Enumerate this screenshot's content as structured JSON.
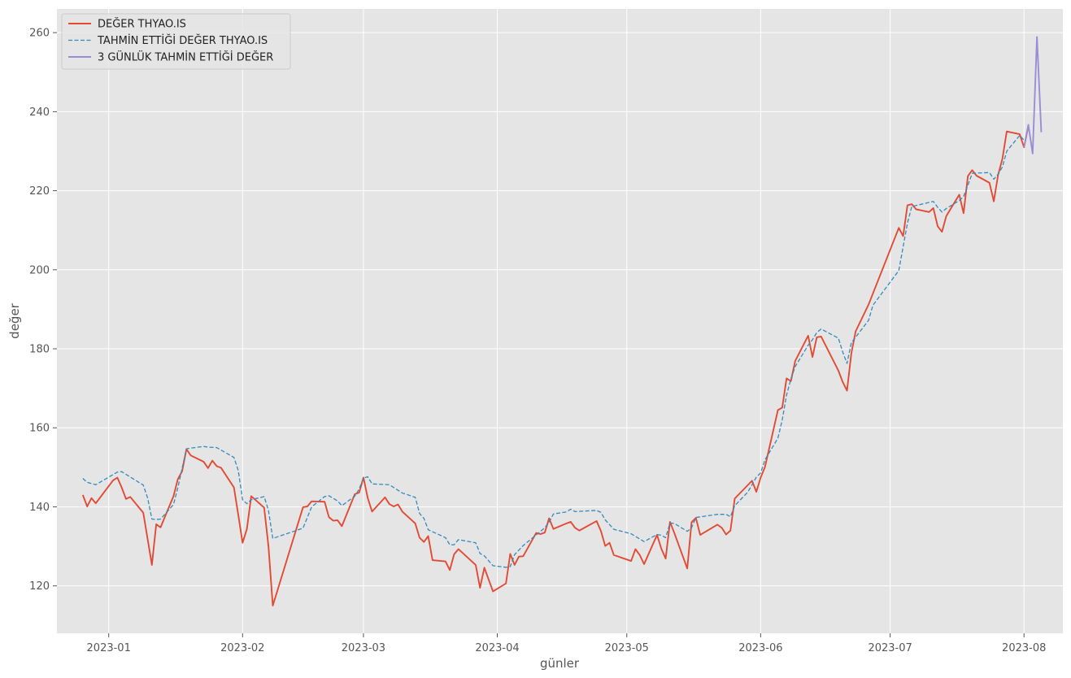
{
  "chart_data": {
    "type": "line",
    "title": "",
    "xlabel": "günler",
    "ylabel": "değer",
    "xlim": [
      "2022-12-20",
      "2023-08-10"
    ],
    "ylim": [
      108,
      266
    ],
    "grid": true,
    "legend_position": "top-left",
    "x_ticks": [
      "2023-01",
      "2023-02",
      "2023-03",
      "2023-04",
      "2023-05",
      "2023-06",
      "2023-07",
      "2023-08"
    ],
    "y_ticks": [
      120,
      140,
      160,
      180,
      200,
      220,
      240,
      260
    ],
    "colors": {
      "background": "#e5e5e5",
      "grid": "#ffffff",
      "axis_text": "#555555"
    },
    "series": [
      {
        "name": "DEĞER THYAO.IS",
        "color": "#e24a33",
        "style": "solid",
        "points": [
          [
            "2022-12-26",
            143.0
          ],
          [
            "2022-12-27",
            140.1
          ],
          [
            "2022-12-28",
            142.2
          ],
          [
            "2022-12-29",
            140.9
          ],
          [
            "2023-01-02",
            146.7
          ],
          [
            "2023-01-03",
            147.4
          ],
          [
            "2023-01-04",
            144.9
          ],
          [
            "2023-01-05",
            142.0
          ],
          [
            "2023-01-06",
            142.5
          ],
          [
            "2023-01-09",
            138.5
          ],
          [
            "2023-01-10",
            131.9
          ],
          [
            "2023-01-11",
            125.3
          ],
          [
            "2023-01-12",
            135.6
          ],
          [
            "2023-01-13",
            134.8
          ],
          [
            "2023-01-16",
            142.7
          ],
          [
            "2023-01-17",
            147.0
          ],
          [
            "2023-01-18",
            149.0
          ],
          [
            "2023-01-19",
            154.6
          ],
          [
            "2023-01-20",
            153.0
          ],
          [
            "2023-01-23",
            151.4
          ],
          [
            "2023-01-24",
            149.8
          ],
          [
            "2023-01-25",
            151.7
          ],
          [
            "2023-01-26",
            150.3
          ],
          [
            "2023-01-27",
            149.9
          ],
          [
            "2023-01-30",
            144.9
          ],
          [
            "2023-01-31",
            138.0
          ],
          [
            "2023-02-01",
            130.9
          ],
          [
            "2023-02-02",
            134.4
          ],
          [
            "2023-02-03",
            142.7
          ],
          [
            "2023-02-06",
            139.8
          ],
          [
            "2023-02-07",
            130.0
          ],
          [
            "2023-02-08",
            115.0
          ],
          [
            "2023-02-15",
            139.9
          ],
          [
            "2023-02-16",
            140.1
          ],
          [
            "2023-02-17",
            141.4
          ],
          [
            "2023-02-20",
            141.3
          ],
          [
            "2023-02-21",
            137.4
          ],
          [
            "2023-02-22",
            136.5
          ],
          [
            "2023-02-23",
            136.6
          ],
          [
            "2023-02-24",
            135.1
          ],
          [
            "2023-02-27",
            143.2
          ],
          [
            "2023-02-28",
            143.6
          ],
          [
            "2023-03-01",
            147.4
          ],
          [
            "2023-03-02",
            142.2
          ],
          [
            "2023-03-03",
            138.8
          ],
          [
            "2023-03-06",
            142.4
          ],
          [
            "2023-03-07",
            140.7
          ],
          [
            "2023-03-08",
            140.1
          ],
          [
            "2023-03-09",
            140.6
          ],
          [
            "2023-03-10",
            138.8
          ],
          [
            "2023-03-13",
            135.8
          ],
          [
            "2023-03-14",
            132.2
          ],
          [
            "2023-03-15",
            131.1
          ],
          [
            "2023-03-16",
            132.6
          ],
          [
            "2023-03-17",
            126.5
          ],
          [
            "2023-03-20",
            126.2
          ],
          [
            "2023-03-21",
            124.0
          ],
          [
            "2023-03-22",
            128.0
          ],
          [
            "2023-03-23",
            129.3
          ],
          [
            "2023-03-27",
            125.3
          ],
          [
            "2023-03-28",
            119.5
          ],
          [
            "2023-03-29",
            124.6
          ],
          [
            "2023-03-31",
            118.6
          ],
          [
            "2023-04-03",
            120.6
          ],
          [
            "2023-04-04",
            128.1
          ],
          [
            "2023-04-05",
            125.3
          ],
          [
            "2023-04-06",
            127.4
          ],
          [
            "2023-04-07",
            127.5
          ],
          [
            "2023-04-10",
            133.4
          ],
          [
            "2023-04-11",
            133.1
          ],
          [
            "2023-04-12",
            133.5
          ],
          [
            "2023-04-13",
            137.1
          ],
          [
            "2023-04-14",
            134.4
          ],
          [
            "2023-04-17",
            135.8
          ],
          [
            "2023-04-18",
            136.2
          ],
          [
            "2023-04-19",
            134.7
          ],
          [
            "2023-04-20",
            134.0
          ],
          [
            "2023-04-24",
            136.4
          ],
          [
            "2023-04-25",
            133.9
          ],
          [
            "2023-04-26",
            130.1
          ],
          [
            "2023-04-27",
            130.9
          ],
          [
            "2023-04-28",
            127.8
          ],
          [
            "2023-05-02",
            126.3
          ],
          [
            "2023-05-03",
            129.3
          ],
          [
            "2023-05-04",
            127.8
          ],
          [
            "2023-05-05",
            125.5
          ],
          [
            "2023-05-08",
            132.9
          ],
          [
            "2023-05-09",
            129.4
          ],
          [
            "2023-05-10",
            126.9
          ],
          [
            "2023-05-11",
            136.2
          ],
          [
            "2023-05-12",
            133.4
          ],
          [
            "2023-05-15",
            124.4
          ],
          [
            "2023-05-16",
            136.1
          ],
          [
            "2023-05-17",
            137.2
          ],
          [
            "2023-05-18",
            132.9
          ],
          [
            "2023-05-22",
            135.5
          ],
          [
            "2023-05-23",
            134.7
          ],
          [
            "2023-05-24",
            133.0
          ],
          [
            "2023-05-25",
            134.0
          ],
          [
            "2023-05-26",
            142.1
          ],
          [
            "2023-05-30",
            146.6
          ],
          [
            "2023-05-31",
            143.8
          ],
          [
            "2023-06-01",
            147.4
          ],
          [
            "2023-06-02",
            150.1
          ],
          [
            "2023-06-05",
            164.5
          ],
          [
            "2023-06-06",
            165.1
          ],
          [
            "2023-06-07",
            172.5
          ],
          [
            "2023-06-08",
            171.8
          ],
          [
            "2023-06-09",
            176.9
          ],
          [
            "2023-06-12",
            183.3
          ],
          [
            "2023-06-13",
            177.9
          ],
          [
            "2023-06-14",
            182.9
          ],
          [
            "2023-06-15",
            183.1
          ],
          [
            "2023-06-19",
            174.5
          ],
          [
            "2023-06-20",
            171.6
          ],
          [
            "2023-06-21",
            169.4
          ],
          [
            "2023-06-22",
            178.8
          ],
          [
            "2023-06-23",
            184.4
          ],
          [
            "2023-06-26",
            191.2
          ],
          [
            "2023-07-03",
            210.6
          ],
          [
            "2023-07-04",
            208.5
          ],
          [
            "2023-07-05",
            216.3
          ],
          [
            "2023-07-06",
            216.6
          ],
          [
            "2023-07-07",
            215.3
          ],
          [
            "2023-07-10",
            214.6
          ],
          [
            "2023-07-11",
            215.6
          ],
          [
            "2023-07-12",
            211.0
          ],
          [
            "2023-07-13",
            209.6
          ],
          [
            "2023-07-14",
            213.6
          ],
          [
            "2023-07-17",
            219.0
          ],
          [
            "2023-07-18",
            214.3
          ],
          [
            "2023-07-19",
            223.7
          ],
          [
            "2023-07-20",
            225.2
          ],
          [
            "2023-07-21",
            223.8
          ],
          [
            "2023-07-24",
            222.0
          ],
          [
            "2023-07-25",
            217.3
          ],
          [
            "2023-07-26",
            224.0
          ],
          [
            "2023-07-27",
            228.1
          ],
          [
            "2023-07-28",
            235.0
          ],
          [
            "2023-07-31",
            234.3
          ],
          [
            "2023-08-01",
            231.0
          ],
          [
            "2023-08-02",
            236.3
          ]
        ]
      },
      {
        "name": "TAHMİN ETTİĞİ DEĞER THYAO.IS",
        "color": "#348abd",
        "style": "dashed",
        "points": [
          [
            "2022-12-26",
            147.2
          ],
          [
            "2022-12-27",
            146.2
          ],
          [
            "2022-12-29",
            145.6
          ],
          [
            "2023-01-03",
            148.8
          ],
          [
            "2023-01-04",
            148.9
          ],
          [
            "2023-01-09",
            145.5
          ],
          [
            "2023-01-10",
            142.3
          ],
          [
            "2023-01-11",
            136.9
          ],
          [
            "2023-01-12",
            136.8
          ],
          [
            "2023-01-13",
            136.9
          ],
          [
            "2023-01-16",
            140.6
          ],
          [
            "2023-01-17",
            144.8
          ],
          [
            "2023-01-19",
            154.7
          ],
          [
            "2023-01-23",
            155.3
          ],
          [
            "2023-01-24",
            155.1
          ],
          [
            "2023-01-26",
            155.0
          ],
          [
            "2023-01-30",
            152.5
          ],
          [
            "2023-01-31",
            149.2
          ],
          [
            "2023-02-01",
            141.8
          ],
          [
            "2023-02-02",
            140.8
          ],
          [
            "2023-02-03",
            141.8
          ],
          [
            "2023-02-06",
            142.6
          ],
          [
            "2023-02-07",
            139.1
          ],
          [
            "2023-02-08",
            132.0
          ],
          [
            "2023-02-15",
            134.6
          ],
          [
            "2023-02-17",
            140.0
          ],
          [
            "2023-02-20",
            142.6
          ],
          [
            "2023-02-21",
            142.8
          ],
          [
            "2023-02-23",
            141.5
          ],
          [
            "2023-02-24",
            140.3
          ],
          [
            "2023-02-27",
            142.7
          ],
          [
            "2023-02-28",
            144.5
          ],
          [
            "2023-03-01",
            147.3
          ],
          [
            "2023-03-02",
            147.6
          ],
          [
            "2023-03-03",
            145.8
          ],
          [
            "2023-03-07",
            145.6
          ],
          [
            "2023-03-10",
            143.5
          ],
          [
            "2023-03-13",
            142.4
          ],
          [
            "2023-03-14",
            138.3
          ],
          [
            "2023-03-15",
            137.1
          ],
          [
            "2023-03-16",
            134.2
          ],
          [
            "2023-03-20",
            132.2
          ],
          [
            "2023-03-21",
            130.4
          ],
          [
            "2023-03-22",
            130.4
          ],
          [
            "2023-03-23",
            131.7
          ],
          [
            "2023-03-27",
            130.9
          ],
          [
            "2023-03-28",
            128.2
          ],
          [
            "2023-03-29",
            127.6
          ],
          [
            "2023-03-31",
            125.1
          ],
          [
            "2023-04-03",
            124.7
          ],
          [
            "2023-04-04",
            124.9
          ],
          [
            "2023-04-05",
            127.9
          ],
          [
            "2023-04-07",
            130.2
          ],
          [
            "2023-04-10",
            132.9
          ],
          [
            "2023-04-12",
            134.7
          ],
          [
            "2023-04-13",
            136.1
          ],
          [
            "2023-04-14",
            138.2
          ],
          [
            "2023-04-17",
            138.7
          ],
          [
            "2023-04-18",
            139.4
          ],
          [
            "2023-04-19",
            138.8
          ],
          [
            "2023-04-24",
            139.1
          ],
          [
            "2023-04-25",
            138.6
          ],
          [
            "2023-04-26",
            136.7
          ],
          [
            "2023-04-28",
            134.3
          ],
          [
            "2023-05-02",
            133.2
          ],
          [
            "2023-05-05",
            131.2
          ],
          [
            "2023-05-08",
            133.0
          ],
          [
            "2023-05-09",
            132.8
          ],
          [
            "2023-05-10",
            132.2
          ],
          [
            "2023-05-11",
            135.9
          ],
          [
            "2023-05-12",
            135.8
          ],
          [
            "2023-05-15",
            133.8
          ],
          [
            "2023-05-16",
            134.7
          ],
          [
            "2023-05-17",
            137.3
          ],
          [
            "2023-05-22",
            138.1
          ],
          [
            "2023-05-24",
            138.1
          ],
          [
            "2023-05-25",
            137.5
          ],
          [
            "2023-05-26",
            140.3
          ],
          [
            "2023-05-29",
            143.7
          ],
          [
            "2023-05-31",
            147.5
          ],
          [
            "2023-06-01",
            148.6
          ],
          [
            "2023-06-02",
            151.9
          ],
          [
            "2023-06-05",
            157.4
          ],
          [
            "2023-06-06",
            162.0
          ],
          [
            "2023-06-07",
            168.3
          ],
          [
            "2023-06-08",
            172.3
          ],
          [
            "2023-06-09",
            175.5
          ],
          [
            "2023-06-12",
            180.9
          ],
          [
            "2023-06-13",
            182.3
          ],
          [
            "2023-06-14",
            184.1
          ],
          [
            "2023-06-15",
            185.0
          ],
          [
            "2023-06-19",
            182.7
          ],
          [
            "2023-06-20",
            179.2
          ],
          [
            "2023-06-21",
            176.3
          ],
          [
            "2023-06-22",
            181.5
          ],
          [
            "2023-06-26",
            187.2
          ],
          [
            "2023-06-27",
            191.0
          ],
          [
            "2023-07-03",
            199.8
          ],
          [
            "2023-07-04",
            205.8
          ],
          [
            "2023-07-05",
            211.8
          ],
          [
            "2023-07-06",
            216.0
          ],
          [
            "2023-07-11",
            217.3
          ],
          [
            "2023-07-12",
            215.8
          ],
          [
            "2023-07-13",
            214.6
          ],
          [
            "2023-07-14",
            215.5
          ],
          [
            "2023-07-17",
            217.5
          ],
          [
            "2023-07-18",
            218.5
          ],
          [
            "2023-07-19",
            221.4
          ],
          [
            "2023-07-20",
            224.4
          ],
          [
            "2023-07-24",
            224.6
          ],
          [
            "2023-07-25",
            222.9
          ],
          [
            "2023-07-26",
            224.2
          ],
          [
            "2023-07-27",
            226.0
          ],
          [
            "2023-07-28",
            230.0
          ],
          [
            "2023-07-31",
            234.0
          ],
          [
            "2023-08-01",
            232.8
          ]
        ]
      },
      {
        "name": "3 GÜNLÜK TAHMİN ETTİĞİ DEĞER",
        "color": "#988ed5",
        "style": "solid",
        "points": [
          [
            "2023-08-01",
            231.0
          ],
          [
            "2023-08-02",
            236.7
          ],
          [
            "2023-08-03",
            229.4
          ],
          [
            "2023-08-04",
            258.9
          ],
          [
            "2023-08-05",
            234.8
          ]
        ]
      }
    ]
  }
}
